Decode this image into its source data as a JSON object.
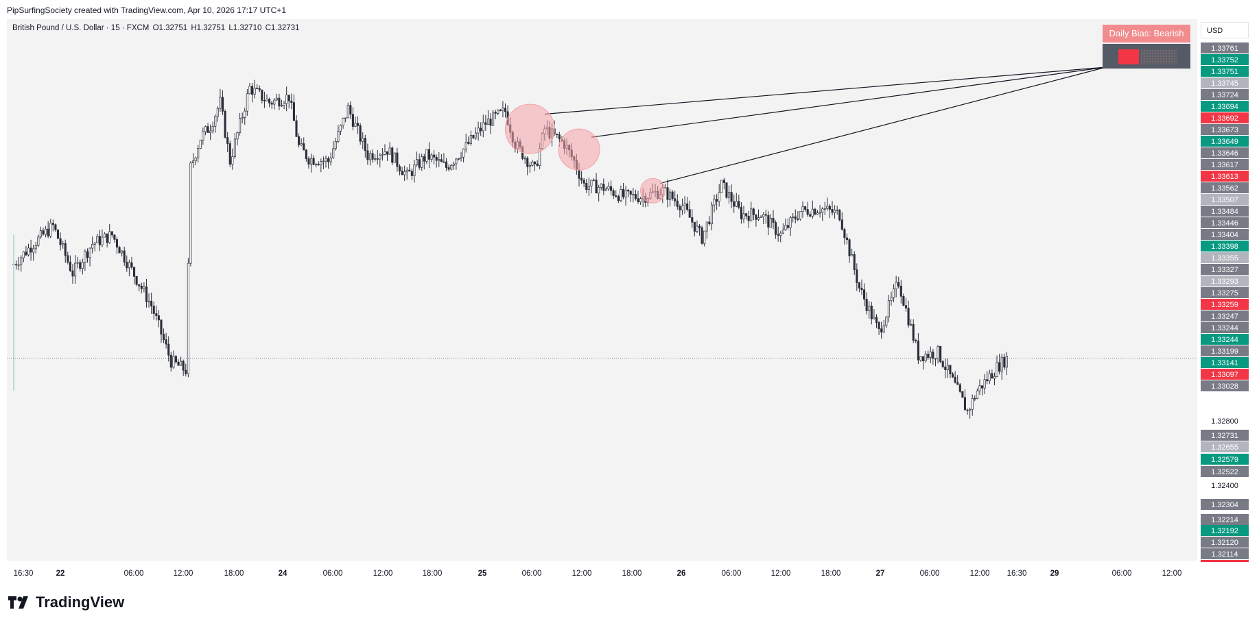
{
  "header": {
    "attribution": "PipSurfingSociety created with TradingView.com, Apr 10, 2026 17:17 UTC+1"
  },
  "symbol": {
    "name": "British Pound / U.S. Dollar · 15 · FXCM",
    "open": "O1.32751",
    "high": "H1.32751",
    "low": "L1.32710",
    "close": "C1.32731"
  },
  "currency_button": "USD",
  "daily_bias": {
    "label": "Daily Bias: Bearish"
  },
  "footer": {
    "brand": "TradingView"
  },
  "colors": {
    "bearish_panel": "#f28b8e",
    "teal": "#089981",
    "red": "#f23645",
    "grey_label": "#787b86",
    "circle_fill": "#f4a3a8"
  },
  "chart_data": {
    "type": "candlestick",
    "ylim": [
      1.3205,
      1.3382
    ],
    "x_ticks": [
      "16:30",
      "22",
      "06:00",
      "12:00",
      "18:00",
      "24",
      "06:00",
      "12:00",
      "18:00",
      "25",
      "06:00",
      "12:00",
      "18:00",
      "26",
      "06:00",
      "12:00",
      "18:00",
      "27",
      "06:00",
      "12:00",
      "16:30",
      "29",
      "06:00",
      "12:00"
    ],
    "y_axis_plain": [
      "1.32800",
      "1.32400"
    ],
    "last_price": "1.32731",
    "price_labels": [
      {
        "v": "1.33761",
        "c": "grey"
      },
      {
        "v": "1.33752",
        "c": "teal"
      },
      {
        "v": "1.33751",
        "c": "teal"
      },
      {
        "v": "1.33745",
        "c": "light"
      },
      {
        "v": "1.33724",
        "c": "grey"
      },
      {
        "v": "1.33694",
        "c": "teal"
      },
      {
        "v": "1.33692",
        "c": "red"
      },
      {
        "v": "1.33673",
        "c": "grey"
      },
      {
        "v": "1.33649",
        "c": "teal"
      },
      {
        "v": "1.33646",
        "c": "grey"
      },
      {
        "v": "1.33617",
        "c": "grey"
      },
      {
        "v": "1.33613",
        "c": "red"
      },
      {
        "v": "1.33562",
        "c": "grey"
      },
      {
        "v": "1.33507",
        "c": "light"
      },
      {
        "v": "1.33484",
        "c": "grey"
      },
      {
        "v": "1.33446",
        "c": "grey"
      },
      {
        "v": "1.33404",
        "c": "grey"
      },
      {
        "v": "1.33398",
        "c": "teal"
      },
      {
        "v": "1.33355",
        "c": "light"
      },
      {
        "v": "1.33327",
        "c": "grey"
      },
      {
        "v": "1.33293",
        "c": "light"
      },
      {
        "v": "1.33275",
        "c": "grey"
      },
      {
        "v": "1.33259",
        "c": "red"
      },
      {
        "v": "1.33247",
        "c": "grey"
      },
      {
        "v": "1.33244",
        "c": "grey"
      },
      {
        "v": "1.33244",
        "c": "teal"
      },
      {
        "v": "1.33199",
        "c": "grey"
      },
      {
        "v": "1.33141",
        "c": "teal"
      },
      {
        "v": "1.33097",
        "c": "red"
      },
      {
        "v": "1.33028",
        "c": "grey"
      },
      {
        "v": "1.32731",
        "c": "grey"
      },
      {
        "v": "1.32655",
        "c": "light"
      },
      {
        "v": "1.32579",
        "c": "teal"
      },
      {
        "v": "1.32522",
        "c": "grey"
      },
      {
        "v": "1.32304",
        "c": "grey"
      },
      {
        "v": "1.32214",
        "c": "grey"
      },
      {
        "v": "1.32192",
        "c": "teal"
      },
      {
        "v": "1.32120",
        "c": "grey"
      },
      {
        "v": "1.32114",
        "c": "grey"
      }
    ],
    "price_path": [
      {
        "t": 0,
        "p": 1.3305
      },
      {
        "t": 2,
        "p": 1.3312
      },
      {
        "t": 4,
        "p": 1.3318
      },
      {
        "t": 6,
        "p": 1.3302
      },
      {
        "t": 8,
        "p": 1.3312
      },
      {
        "t": 10,
        "p": 1.3315
      },
      {
        "t": 12,
        "p": 1.3303
      },
      {
        "t": 14,
        "p": 1.3291
      },
      {
        "t": 16,
        "p": 1.3272
      },
      {
        "t": 17.5,
        "p": 1.3269
      },
      {
        "t": 18,
        "p": 1.3338
      },
      {
        "t": 19,
        "p": 1.3348
      },
      {
        "t": 20,
        "p": 1.3352
      },
      {
        "t": 21,
        "p": 1.336
      },
      {
        "t": 22,
        "p": 1.334
      },
      {
        "t": 24,
        "p": 1.3365
      },
      {
        "t": 26,
        "p": 1.336
      },
      {
        "t": 28,
        "p": 1.3362
      },
      {
        "t": 29,
        "p": 1.3345
      },
      {
        "t": 30,
        "p": 1.3341
      },
      {
        "t": 32,
        "p": 1.334
      },
      {
        "t": 34,
        "p": 1.3358
      },
      {
        "t": 36,
        "p": 1.3342
      },
      {
        "t": 38,
        "p": 1.3344
      },
      {
        "t": 40,
        "p": 1.3335
      },
      {
        "t": 42,
        "p": 1.3342
      },
      {
        "t": 44,
        "p": 1.3338
      },
      {
        "t": 46,
        "p": 1.3345
      },
      {
        "t": 48,
        "p": 1.3353
      },
      {
        "t": 50,
        "p": 1.3357
      },
      {
        "t": 51,
        "p": 1.3346
      },
      {
        "t": 53,
        "p": 1.3337
      },
      {
        "t": 54,
        "p": 1.3351
      },
      {
        "t": 56,
        "p": 1.3346
      },
      {
        "t": 57,
        "p": 1.334
      },
      {
        "t": 58,
        "p": 1.3332
      },
      {
        "t": 60,
        "p": 1.3331
      },
      {
        "t": 62,
        "p": 1.3328
      },
      {
        "t": 64,
        "p": 1.3328
      },
      {
        "t": 66,
        "p": 1.333
      },
      {
        "t": 68,
        "p": 1.3325
      },
      {
        "t": 70,
        "p": 1.3314
      },
      {
        "t": 72,
        "p": 1.3332
      },
      {
        "t": 74,
        "p": 1.3322
      },
      {
        "t": 76,
        "p": 1.3322
      },
      {
        "t": 78,
        "p": 1.3315
      },
      {
        "t": 80,
        "p": 1.3323
      },
      {
        "t": 82,
        "p": 1.3324
      },
      {
        "t": 84,
        "p": 1.3322
      },
      {
        "t": 86,
        "p": 1.3297
      },
      {
        "t": 88,
        "p": 1.3282
      },
      {
        "t": 90,
        "p": 1.3299
      },
      {
        "t": 92,
        "p": 1.3274
      },
      {
        "t": 94,
        "p": 1.3275
      },
      {
        "t": 96,
        "p": 1.3262
      },
      {
        "t": 97,
        "p": 1.3255
      },
      {
        "t": 98,
        "p": 1.3262
      },
      {
        "t": 100,
        "p": 1.327
      },
      {
        "t": 101,
        "p": 1.3273
      }
    ],
    "annotations": {
      "circles": [
        {
          "t": 52.5,
          "p": 1.3351,
          "r": 36
        },
        {
          "t": 57.5,
          "p": 1.3344,
          "r": 30
        },
        {
          "t": 65,
          "p": 1.333,
          "r": 18
        }
      ]
    }
  }
}
